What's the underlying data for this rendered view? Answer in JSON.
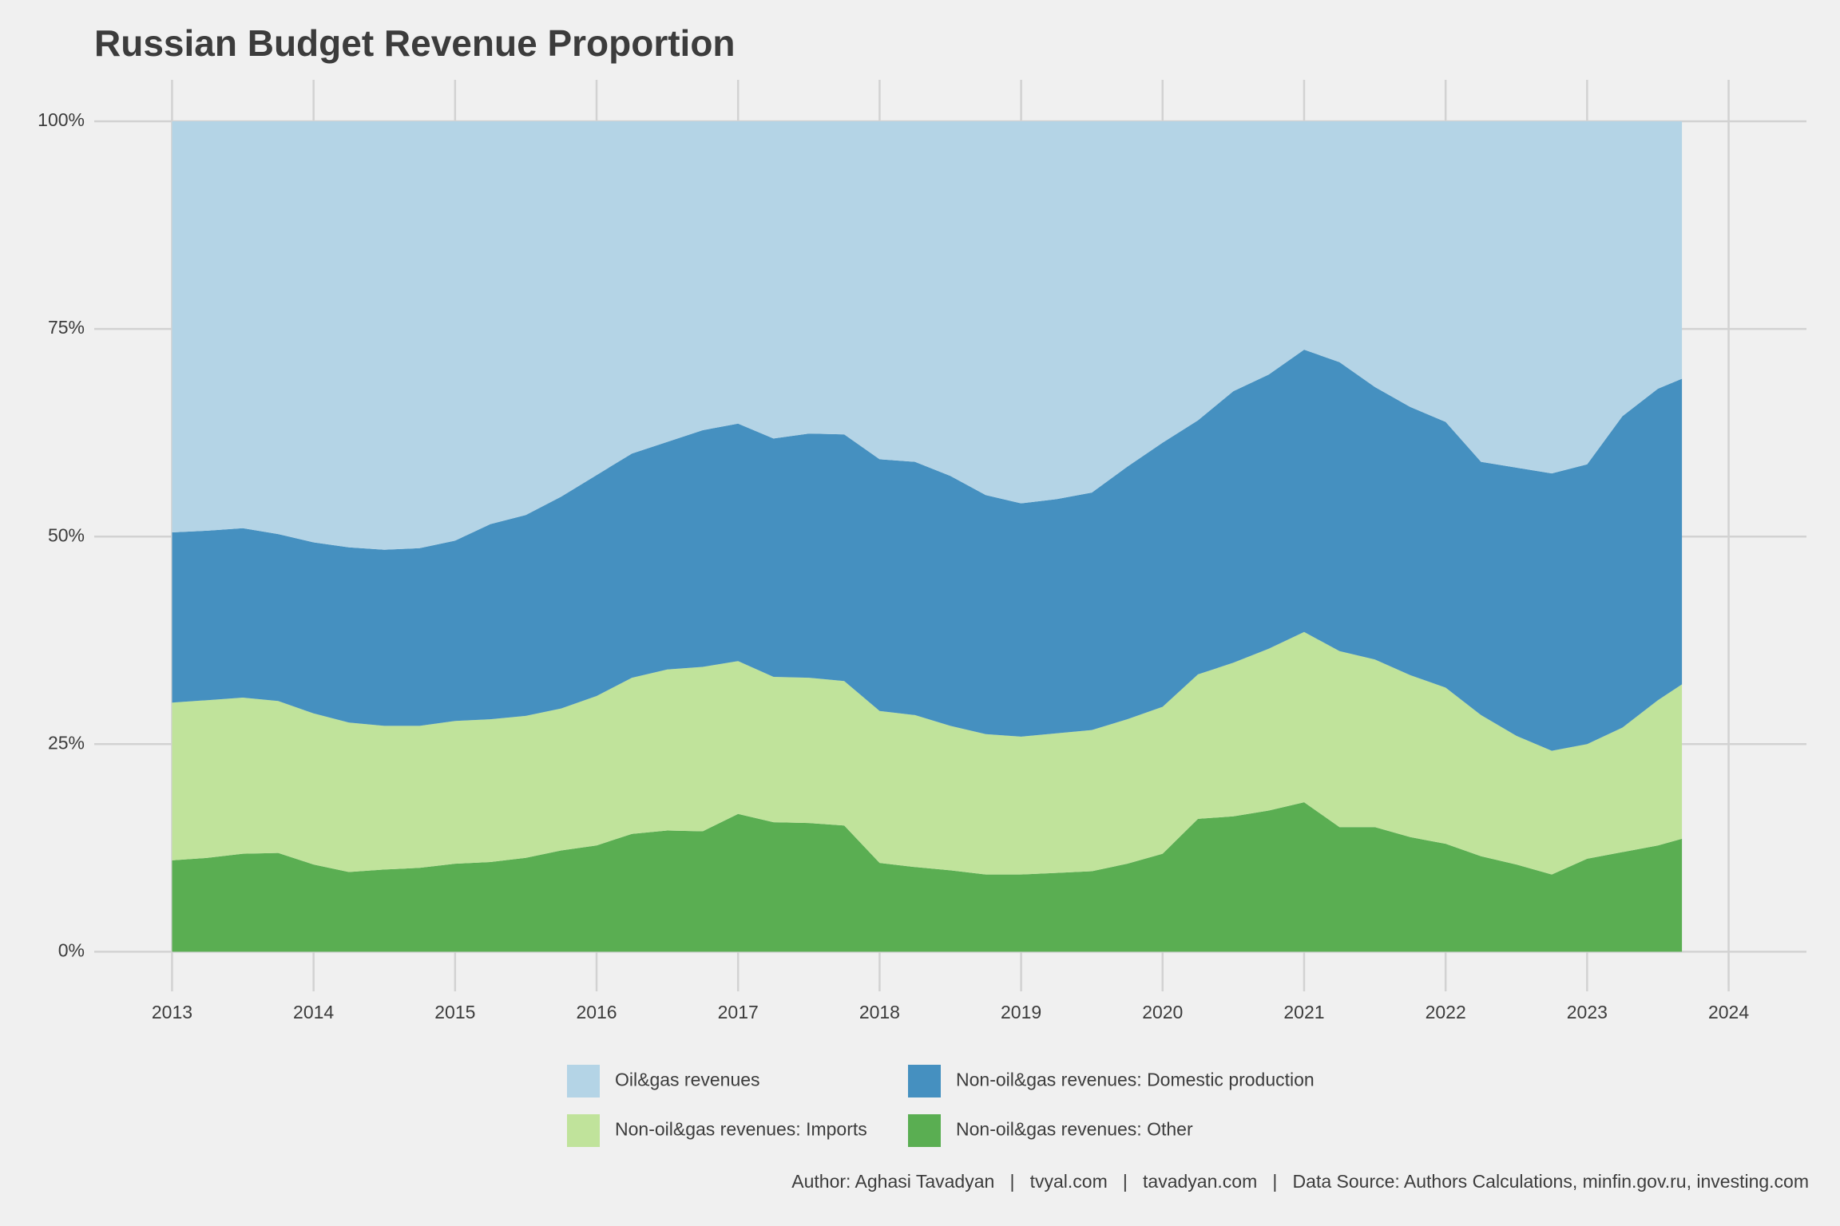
{
  "chart_data": {
    "type": "stacked_area",
    "title": "Russian Budget Revenue Proportion",
    "caption": "Author: Aghasi Tavadyan   |   tvyal.com   |   tavadyan.com   |   Data Source: Authors Calculations, minfin.gov.ru, investing.com",
    "x": [
      2013,
      2013.25,
      2013.5,
      2013.75,
      2014,
      2014.25,
      2014.5,
      2014.75,
      2015,
      2015.25,
      2015.5,
      2015.75,
      2016,
      2016.25,
      2016.5,
      2016.75,
      2017,
      2017.25,
      2017.5,
      2017.75,
      2018,
      2018.25,
      2018.5,
      2018.75,
      2019,
      2019.25,
      2019.5,
      2019.75,
      2020,
      2020.25,
      2020.5,
      2020.75,
      2021,
      2021.25,
      2021.5,
      2021.75,
      2022,
      2022.25,
      2022.5,
      2022.75,
      2023,
      2023.25,
      2023.5,
      2023.67
    ],
    "series": [
      {
        "name": "Oil&gas revenues",
        "color": "#b4d4e6",
        "values": [
          49.5,
          49.3,
          49,
          49.7,
          50.7,
          51.3,
          51.6,
          51.4,
          50.5,
          48.5,
          47.4,
          45.2,
          42.6,
          40,
          38.6,
          37.2,
          36.4,
          38.2,
          37.6,
          37.7,
          40.7,
          41,
          42.7,
          45,
          46,
          45.5,
          44.7,
          41.6,
          38.7,
          36,
          32.5,
          30.5,
          27.5,
          29,
          32,
          34.4,
          36.2,
          41,
          41.7,
          42.4,
          41.3,
          35.5,
          32.2,
          31
        ]
      },
      {
        "name": "Non-oil&gas revenues: Domestic production",
        "color": "#4590c0",
        "values": [
          20.5,
          20.4,
          20.4,
          20.1,
          20.6,
          21.1,
          21.2,
          21.4,
          21.7,
          23.5,
          24.2,
          25.5,
          26.6,
          27,
          27.4,
          28.5,
          28.6,
          28.7,
          29.4,
          29.7,
          30.3,
          30.5,
          30.1,
          28.8,
          28.1,
          28.2,
          28.6,
          30.4,
          31.8,
          30.6,
          32.7,
          33,
          34,
          34.8,
          32.8,
          32.3,
          32,
          30.5,
          32.3,
          33.4,
          33.7,
          37.5,
          37.5,
          36.8
        ]
      },
      {
        "name": "Non-oil&gas revenues: Imports",
        "color": "#c0e39b",
        "values": [
          19,
          19,
          18.8,
          18.3,
          18.2,
          18,
          17.3,
          17.1,
          17.2,
          17.2,
          17.1,
          17.1,
          18,
          18.8,
          19.4,
          19.8,
          18.4,
          17.5,
          17.5,
          17.4,
          18.3,
          18.3,
          17.4,
          16.9,
          16.6,
          16.8,
          17,
          17.4,
          17.7,
          17.4,
          18.5,
          19.5,
          20.5,
          21.2,
          20.2,
          19.5,
          18.8,
          17,
          15.5,
          14.9,
          13.8,
          15,
          17.5,
          18.6
        ]
      },
      {
        "name": "Non-oil&gas revenues: Other",
        "color": "#5aae52",
        "values": [
          11,
          11.3,
          11.8,
          11.9,
          10.5,
          9.6,
          9.9,
          10.1,
          10.6,
          10.8,
          11.3,
          12.2,
          12.8,
          14.2,
          14.6,
          14.5,
          16.6,
          15.6,
          15.5,
          15.2,
          10.7,
          10.2,
          9.8,
          9.3,
          9.3,
          9.5,
          9.7,
          10.6,
          11.8,
          16,
          16.3,
          17,
          18,
          15,
          15,
          13.8,
          13,
          11.5,
          10.5,
          9.3,
          11.2,
          12,
          12.8,
          13.6
        ]
      }
    ],
    "xlim": [
      2012.45,
      2024.55
    ],
    "xticks": [
      2013,
      2014,
      2015,
      2016,
      2017,
      2018,
      2019,
      2020,
      2021,
      2022,
      2023,
      2024
    ],
    "ylim": [
      -4,
      105
    ],
    "yticks": [
      {
        "value": 0,
        "label": "0%"
      },
      {
        "value": 25,
        "label": "25%"
      },
      {
        "value": 50,
        "label": "50%"
      },
      {
        "value": 75,
        "label": "75%"
      },
      {
        "value": 100,
        "label": "100%"
      }
    ],
    "grid": true
  }
}
